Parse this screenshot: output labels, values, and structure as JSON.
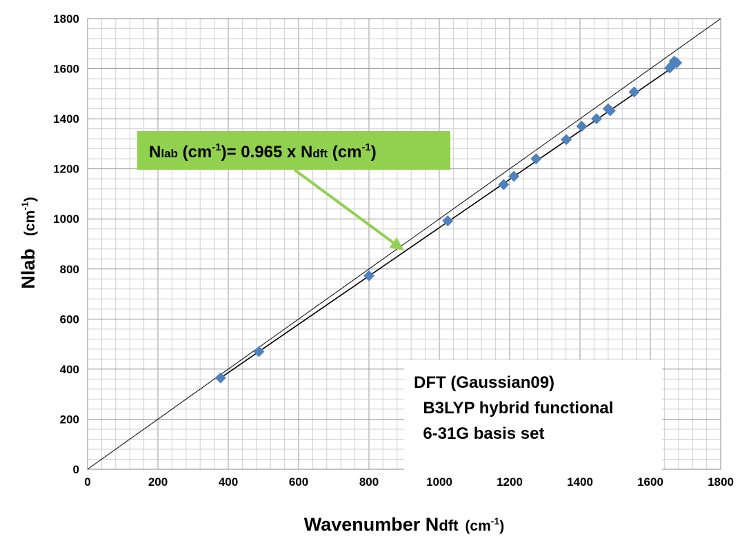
{
  "chart_data": {
    "type": "scatter",
    "xlabel": {
      "main": "Wavenumber  N",
      "sub": "dft",
      "unit": "(cm",
      "sup": "-1",
      "close": ")"
    },
    "ylabel": {
      "main": "Nlab",
      "unit": "(cm",
      "sup": "-1",
      "close": ")"
    },
    "xlim": [
      0,
      1800
    ],
    "ylim": [
      0,
      1800
    ],
    "major_step": 200,
    "minor_step": 40,
    "grid": true,
    "x_ticks": [
      "0",
      "200",
      "400",
      "600",
      "800",
      "1000",
      "1200",
      "1400",
      "1600",
      "1800"
    ],
    "y_ticks": [
      "0",
      "200",
      "400",
      "600",
      "800",
      "1000",
      "1200",
      "1400",
      "1600",
      "1800"
    ],
    "series": [
      {
        "marker": "diamond",
        "color": "#4f81bd",
        "points": [
          [
            378,
            365
          ],
          [
            487,
            470
          ],
          [
            800,
            773
          ],
          [
            1024,
            992
          ],
          [
            1183,
            1137
          ],
          [
            1212,
            1170
          ],
          [
            1275,
            1240
          ],
          [
            1361,
            1317
          ],
          [
            1405,
            1370
          ],
          [
            1447,
            1400
          ],
          [
            1480,
            1440
          ],
          [
            1486,
            1432
          ],
          [
            1554,
            1507
          ],
          [
            1655,
            1603
          ],
          [
            1662,
            1614
          ],
          [
            1668,
            1630
          ],
          [
            1675,
            1624
          ]
        ]
      }
    ],
    "reference_line": {
      "slope": 1,
      "color": "#000000"
    },
    "fit_line": {
      "slope": 0.965,
      "from": 378,
      "to": 1675,
      "color": "#000000"
    },
    "annotation_equation": {
      "parts": [
        "N",
        "lab",
        " (cm",
        "-1",
        ")= 0.965 x N",
        "dft",
        " (cm",
        "-1",
        ")"
      ],
      "box_color": "#92d050",
      "arrow_color": "#92d050",
      "arrow_target": [
        900,
        873
      ]
    },
    "annotation_method": {
      "lines": [
        "DFT (Gaussian09)",
        "  B3LYP hybrid functional",
        "  6-31G basis set"
      ]
    }
  }
}
